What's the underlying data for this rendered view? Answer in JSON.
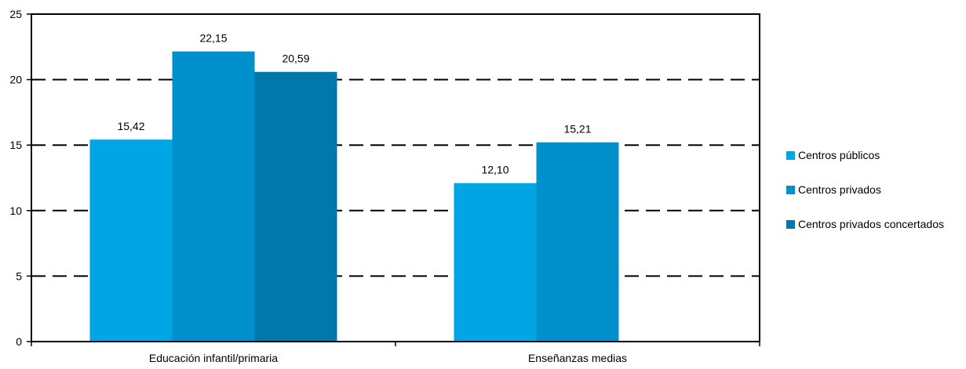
{
  "chart_data": {
    "type": "bar",
    "categories": [
      "Educación infantil/primaria",
      "Enseñanzas medias"
    ],
    "series": [
      {
        "name": "Centros públicos",
        "values": [
          15.42,
          12.1
        ],
        "labels": [
          "15,42",
          "12,10"
        ],
        "color": "#00a6e3"
      },
      {
        "name": "Centros privados",
        "values": [
          22.15,
          15.21
        ],
        "labels": [
          "22,15",
          "15,21"
        ],
        "color": "#0091cd"
      },
      {
        "name": "Centros privados concertados",
        "values": [
          20.59,
          null
        ],
        "labels": [
          "20,59",
          ""
        ],
        "color": "#0078aa"
      }
    ],
    "yticks": [
      "0",
      "5",
      "10",
      "15",
      "20",
      "25"
    ],
    "ylim": [
      0,
      25
    ],
    "grid": "dashed",
    "legend": "right"
  }
}
